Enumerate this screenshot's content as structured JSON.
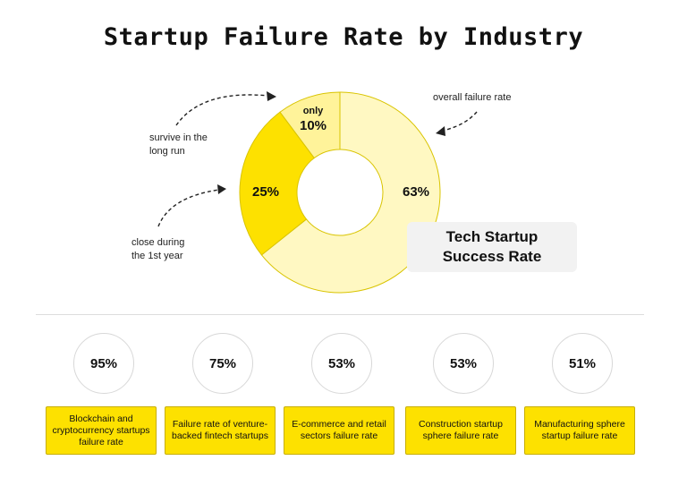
{
  "title": "Startup Failure Rate by Industry",
  "chart_data": [
    {
      "type": "pie",
      "variant": "donut",
      "title": "Tech Startup Success Rate",
      "slices": [
        {
          "label": "overall failure rate",
          "value": 63,
          "display": "63%",
          "color": "#fff8c2"
        },
        {
          "label": "close during the 1st year",
          "value": 25,
          "display": "25%",
          "color": "#fde100"
        },
        {
          "label": "survive in the long run",
          "value": 10,
          "display": "10%",
          "prefix": "only",
          "color": "#fff39a"
        }
      ]
    },
    {
      "type": "table",
      "items": [
        {
          "value": "95%",
          "label": "Blockchain and cryptocurrency startups failure rate"
        },
        {
          "value": "75%",
          "label": "Failure rate of venture-backed fintech startups"
        },
        {
          "value": "53%",
          "label": "E-commerce and retail sectors failure rate"
        },
        {
          "value": "53%",
          "label": "Construction startup sphere failure rate"
        },
        {
          "value": "51%",
          "label": "Manufacturing sphere startup failure rate"
        }
      ]
    }
  ],
  "annotations": {
    "survive": "survive in the long run",
    "close": "close during the 1st year",
    "overall": "overall failure rate"
  },
  "colors": {
    "accent": "#fde100",
    "light": "#fff8c2",
    "mid": "#fff39a",
    "box_border": "#c7ae00"
  }
}
